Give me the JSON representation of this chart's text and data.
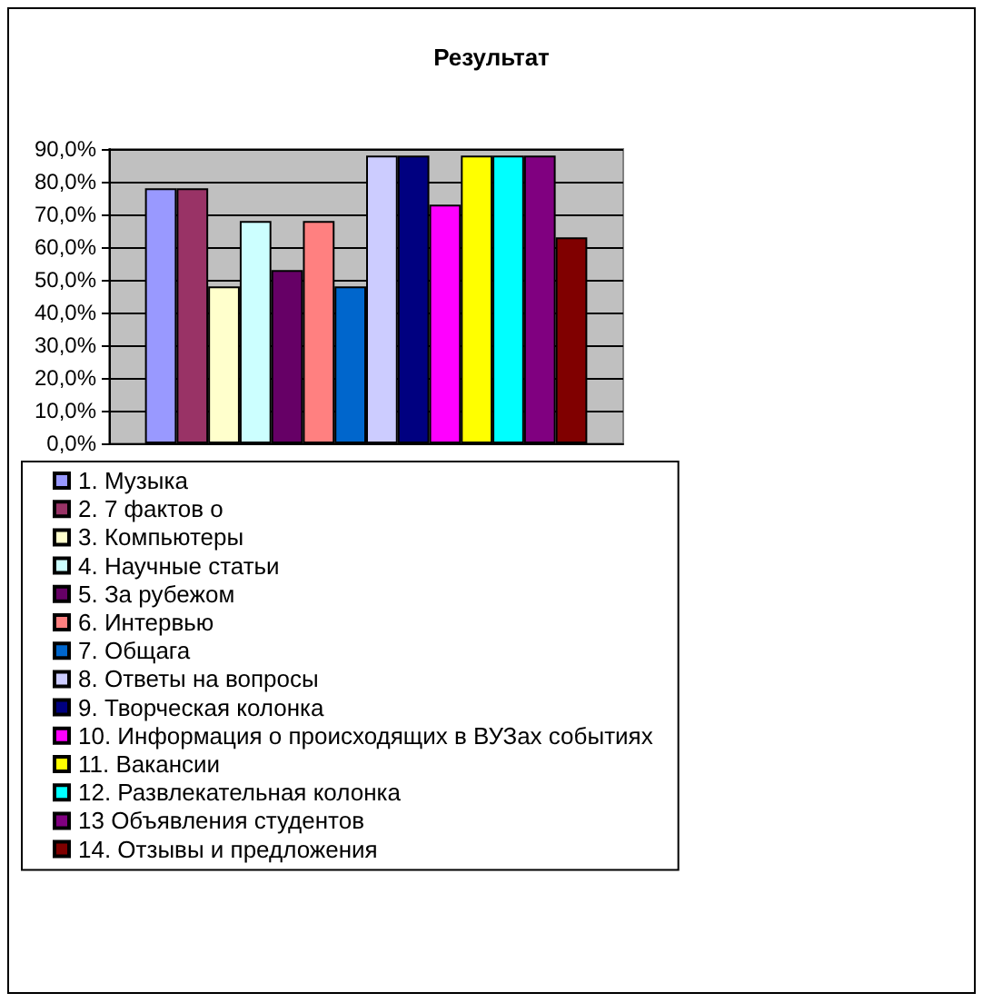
{
  "chart_data": {
    "type": "bar",
    "title": "Результат",
    "categories": [
      null
    ],
    "series": [
      {
        "name": "1. Музыка",
        "color": "#9999ff",
        "values": [
          78
        ]
      },
      {
        "name": "2. 7 фактов о",
        "color": "#993366",
        "values": [
          78
        ]
      },
      {
        "name": "3. Компьютеры",
        "color": "#ffffcc",
        "values": [
          48
        ]
      },
      {
        "name": "4. Научные статьи",
        "color": "#ccffff",
        "values": [
          68
        ]
      },
      {
        "name": "5. За рубежом",
        "color": "#660066",
        "values": [
          53
        ]
      },
      {
        "name": "6. Интервью",
        "color": "#ff8080",
        "values": [
          68
        ]
      },
      {
        "name": "7. Общага",
        "color": "#0066cc",
        "values": [
          48
        ]
      },
      {
        "name": "8. Ответы на вопросы",
        "color": "#ccccff",
        "values": [
          88
        ]
      },
      {
        "name": "9. Творческая колонка",
        "color": "#000080",
        "values": [
          88
        ]
      },
      {
        "name": "10. Информация о происходящих в ВУЗах событиях",
        "color": "#ff00ff",
        "values": [
          73
        ]
      },
      {
        "name": "11. Вакансии",
        "color": "#ffff00",
        "values": [
          88
        ]
      },
      {
        "name": "12. Развлекательная колонка",
        "color": "#00ffff",
        "values": [
          88
        ]
      },
      {
        "name": "13 Объявления студентов",
        "color": "#800080",
        "values": [
          88
        ]
      },
      {
        "name": "14. Отзывы и предложения",
        "color": "#800000",
        "values": [
          63
        ]
      }
    ],
    "ylim": [
      0,
      90
    ],
    "yticks": [
      {
        "value": 0,
        "label": "0,0%"
      },
      {
        "value": 10,
        "label": "10,0%"
      },
      {
        "value": 20,
        "label": "20,0%"
      },
      {
        "value": 30,
        "label": "30,0%"
      },
      {
        "value": 40,
        "label": "40,0%"
      },
      {
        "value": 50,
        "label": "50,0%"
      },
      {
        "value": 60,
        "label": "60,0%"
      },
      {
        "value": 70,
        "label": "70,0%"
      },
      {
        "value": 80,
        "label": "80,0%"
      },
      {
        "value": 90,
        "label": "90,0%"
      }
    ],
    "grid": "y",
    "legend": "bottom"
  }
}
